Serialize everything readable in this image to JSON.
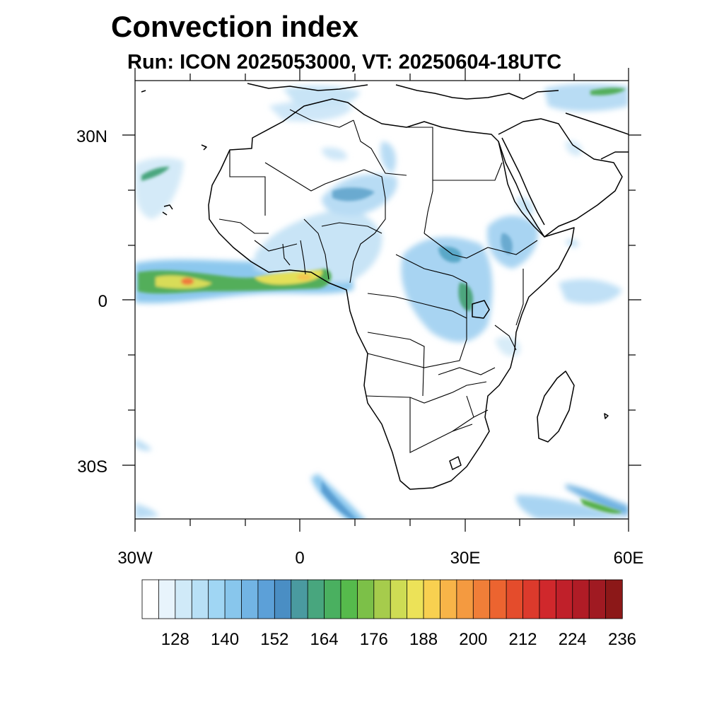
{
  "title": "Convection index",
  "subtitle": "Run: ICON 2025053000,  VT: 20250604-18UTC",
  "map": {
    "lat_ticks": [
      "30N",
      "0",
      "30S"
    ],
    "lon_ticks": [
      "30W",
      "0",
      "30E",
      "60E"
    ]
  },
  "colorbar": {
    "labels": [
      "128",
      "140",
      "152",
      "164",
      "176",
      "188",
      "200",
      "212",
      "224",
      "236"
    ],
    "colors": [
      "#ffffff",
      "#e8f4fc",
      "#d0eaf8",
      "#b8e0f6",
      "#a0d6f4",
      "#88c6ec",
      "#72b4e4",
      "#5ca0d8",
      "#4a8ec4",
      "#4a9aa0",
      "#48a67e",
      "#4ab060",
      "#56ba4c",
      "#7cc048",
      "#a6cc4c",
      "#cedc54",
      "#ece258",
      "#f8d050",
      "#f8b448",
      "#f49a40",
      "#f07e38",
      "#ec6430",
      "#e44c2c",
      "#dc3a2c",
      "#d0282c",
      "#c0202a",
      "#b01c26",
      "#a01a22",
      "#8c1818"
    ]
  }
}
